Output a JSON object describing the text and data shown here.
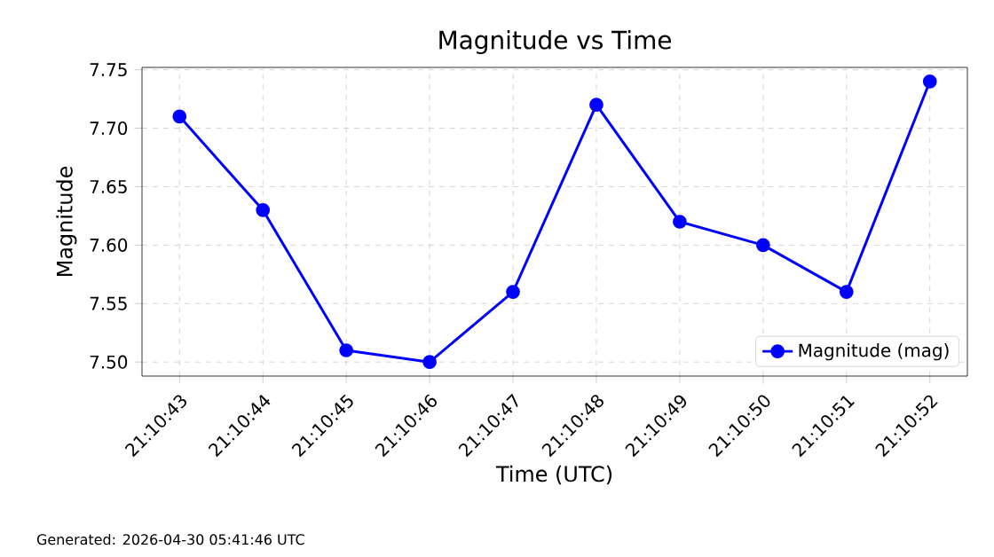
{
  "chart_data": {
    "type": "line",
    "title": "Magnitude vs Time",
    "xlabel": "Time (UTC)",
    "ylabel": "Magnitude",
    "categories": [
      "21:10:43",
      "21:10:44",
      "21:10:45",
      "21:10:46",
      "21:10:47",
      "21:10:48",
      "21:10:49",
      "21:10:50",
      "21:10:51",
      "21:10:52"
    ],
    "series": [
      {
        "name": "Magnitude (mag)",
        "color": "#0000ff",
        "values": [
          7.71,
          7.63,
          7.51,
          7.5,
          7.56,
          7.72,
          7.62,
          7.6,
          7.56,
          7.74
        ]
      }
    ],
    "ylim": [
      7.488,
      7.752
    ],
    "yticks": [
      {
        "value": 7.5,
        "label": "7.50"
      },
      {
        "value": 7.55,
        "label": "7.55"
      },
      {
        "value": 7.6,
        "label": "7.60"
      },
      {
        "value": 7.65,
        "label": "7.65"
      },
      {
        "value": 7.7,
        "label": "7.70"
      },
      {
        "value": 7.75,
        "label": "7.75"
      }
    ],
    "grid": true,
    "legend": "bottom right",
    "marker": "circle",
    "line_style": "solid",
    "annotations": [
      "Generated: 2026-04-30 05:41:46 UTC"
    ]
  }
}
